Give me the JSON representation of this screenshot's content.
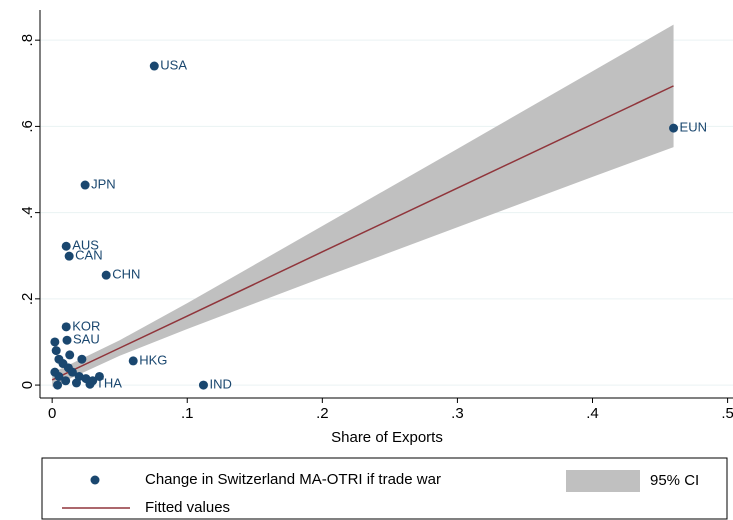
{
  "chart_data": {
    "type": "scatter",
    "xlabel": "Share of Exports",
    "xlim": [
      -0.009,
      0.504
    ],
    "ylim": [
      -0.03,
      0.87
    ],
    "xticks": [
      0,
      {
        "value": 0.1,
        "label": ".1"
      },
      {
        "value": 0.2,
        "label": ".2"
      },
      {
        "value": 0.3,
        "label": ".3"
      },
      {
        "value": 0.4,
        "label": ".4"
      },
      {
        "value": 0.5,
        "label": ".5"
      }
    ],
    "yticks": [
      0,
      {
        "value": 0.2,
        "label": ".2"
      },
      {
        "value": 0.4,
        "label": ".4"
      },
      {
        "value": 0.6,
        "label": ".6"
      },
      {
        "value": 0.8,
        "label": ".8"
      }
    ],
    "grid": true,
    "series": [
      {
        "name": "Change in Switzerland MA-OTRI if trade war",
        "type": "scatter",
        "color": "#1a476f",
        "x": [
          0.0756,
          0.46,
          0.0244,
          0.0104,
          0.0126,
          0.04,
          0.0104,
          0.011,
          0.06,
          0.112,
          0.028,
          0.002,
          0.003,
          0.005,
          0.008,
          0.012,
          0.015,
          0.02,
          0.025,
          0.03,
          0.005,
          0.01,
          0.018,
          0.035,
          0.022,
          0.002,
          0.004,
          0.013
        ],
        "values": [
          0.74,
          0.596,
          0.464,
          0.322,
          0.299,
          0.255,
          0.135,
          0.104,
          0.056,
          0.0,
          0.002,
          0.1,
          0.08,
          0.06,
          0.05,
          0.04,
          0.03,
          0.02,
          0.015,
          0.01,
          0.02,
          0.01,
          0.005,
          0.02,
          0.06,
          0.03,
          0.0,
          0.07
        ],
        "labels": [
          "USA",
          "EUN",
          "JPN",
          "AUS",
          "CAN",
          "CHN",
          "KOR",
          "SAU",
          "HKG",
          "IND",
          "THA",
          null,
          null,
          null,
          null,
          null,
          null,
          null,
          null,
          null,
          null,
          null,
          null,
          null,
          null,
          null,
          null,
          null
        ]
      },
      {
        "name": "Fitted values",
        "type": "line",
        "color": "#90353b",
        "x": [
          0,
          0.05,
          0.1,
          0.2,
          0.3,
          0.4,
          0.46
        ],
        "values": [
          0.012,
          0.086,
          0.16,
          0.309,
          0.457,
          0.605,
          0.694
        ]
      },
      {
        "name": "95% CI",
        "type": "band",
        "color": "#c0c0c0",
        "x": [
          0,
          0.05,
          0.1,
          0.2,
          0.3,
          0.4,
          0.46
        ],
        "lower": [
          -0.004,
          0.068,
          0.13,
          0.249,
          0.366,
          0.483,
          0.552
        ],
        "upper": [
          0.028,
          0.104,
          0.19,
          0.369,
          0.548,
          0.728,
          0.836
        ]
      }
    ]
  }
}
